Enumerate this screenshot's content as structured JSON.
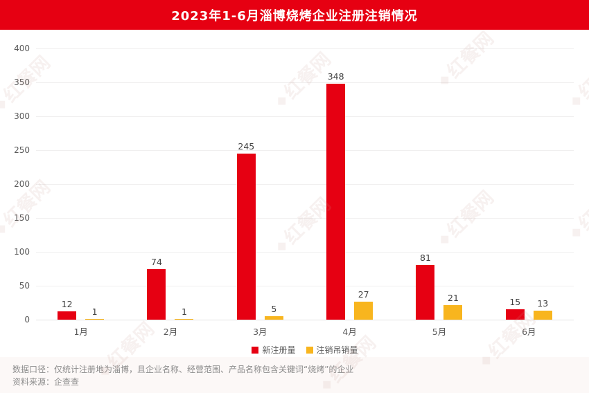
{
  "header": {
    "title": "2023年1-6月淄博烧烤企业注册注销情况"
  },
  "chart_data": {
    "type": "bar",
    "title": "2023年1-6月淄博烧烤企业注册注销情况",
    "categories": [
      "1月",
      "2月",
      "3月",
      "4月",
      "5月",
      "6月"
    ],
    "series": [
      {
        "name": "新注册量",
        "color": "#e60012",
        "values": [
          12,
          74,
          245,
          348,
          81,
          15
        ]
      },
      {
        "name": "注销吊销量",
        "color": "#f8b51e",
        "values": [
          1,
          1,
          5,
          27,
          21,
          13
        ]
      }
    ],
    "xlabel": "",
    "ylabel": "",
    "ylim": [
      0,
      400
    ],
    "yticks": [
      0,
      50,
      100,
      150,
      200,
      250,
      300,
      350,
      400
    ],
    "grid": true,
    "legend_position": "bottom"
  },
  "footer": {
    "line1": "数据口径：仅统计注册地为淄博，且企业名称、经营范围、产品名称包含关键词“烧烤”的企业",
    "line2": "资料来源：企查查"
  },
  "watermark": {
    "text": "红餐网"
  },
  "colors": {
    "header_bg": "#e60012",
    "bar_red": "#e60012",
    "bar_yellow": "#f8b51e"
  }
}
